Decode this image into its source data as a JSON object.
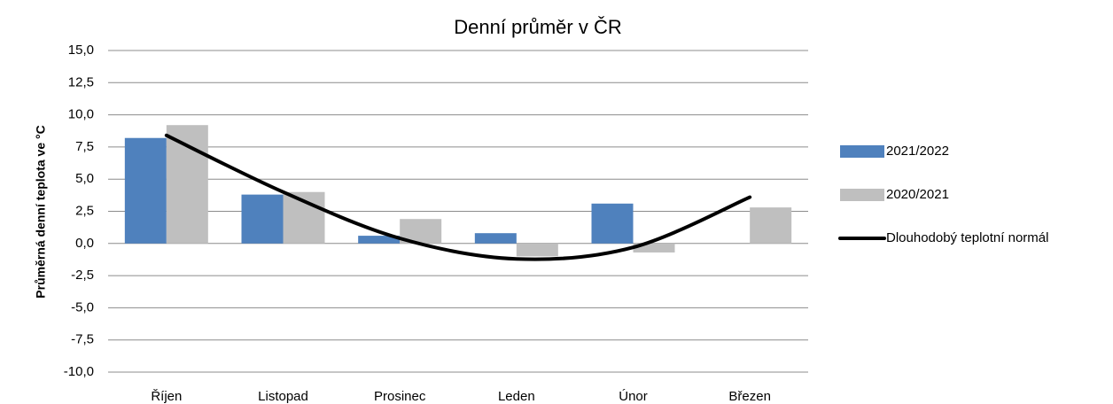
{
  "chart_data": {
    "type": "bar",
    "title": "Denní průměr v ČR",
    "y_label": "Průměrná denní teplota ve °C",
    "categories": [
      "Říjen",
      "Listopad",
      "Prosinec",
      "Leden",
      "Únor",
      "Březen"
    ],
    "series": [
      {
        "name": "2021/2022",
        "color": "#4f81bd",
        "values": [
          8.2,
          3.8,
          0.6,
          0.8,
          3.1,
          null
        ]
      },
      {
        "name": "2020/2021",
        "color": "#bfbfbf",
        "values": [
          9.2,
          4.0,
          1.9,
          -1.0,
          -0.7,
          2.8
        ]
      },
      {
        "name": "Dlouhodobý teplotní normál",
        "type": "line",
        "smooth": true,
        "color": "#000000",
        "values": [
          8.4,
          4.0,
          0.4,
          -1.2,
          -0.3,
          3.6
        ]
      }
    ],
    "ylim": [
      -10,
      15
    ],
    "yticks": [
      {
        "value": -10,
        "label": "-10,0"
      },
      {
        "value": -7.5,
        "label": "-7,5"
      },
      {
        "value": -5,
        "label": "-5,0"
      },
      {
        "value": -2.5,
        "label": "-2,5"
      },
      {
        "value": 0,
        "label": "0,0"
      },
      {
        "value": 2.5,
        "label": "2,5"
      },
      {
        "value": 5,
        "label": "5,0"
      },
      {
        "value": 7.5,
        "label": "7,5"
      },
      {
        "value": 10,
        "label": "10,0"
      },
      {
        "value": 12.5,
        "label": "12,5"
      },
      {
        "value": 15,
        "label": "15,0"
      }
    ],
    "grid": true,
    "legend": "right"
  }
}
